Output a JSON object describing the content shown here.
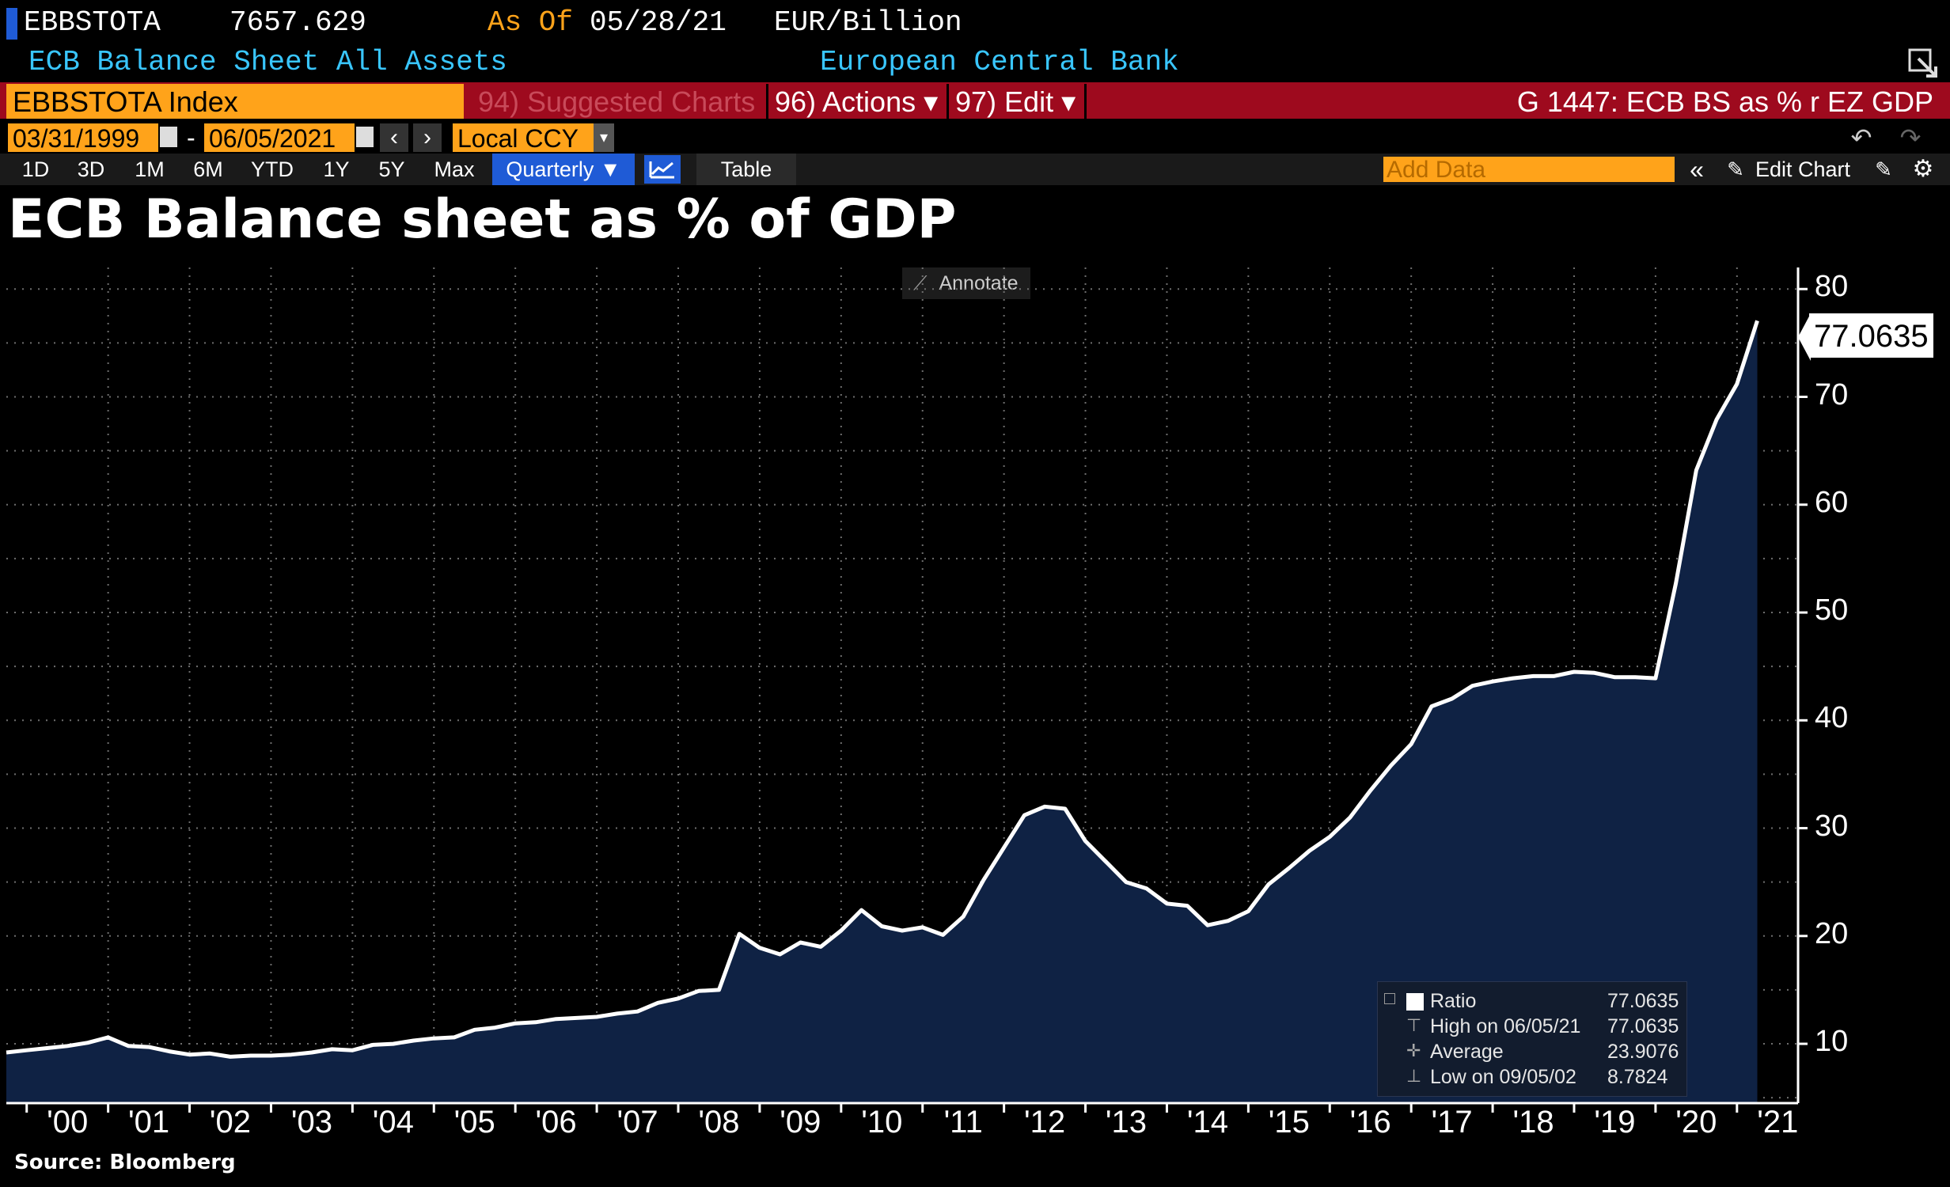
{
  "header": {
    "ticker": "EBBSTOTA",
    "last_value": "7657.629",
    "as_of_label": "As Of",
    "as_of_date": "05/28/21",
    "units": "EUR/Billion",
    "description": "ECB Balance Sheet All Assets",
    "source_name": "European Central Bank"
  },
  "toolbar": {
    "security": "EBBSTOTA Index",
    "suggested_charts": "94) Suggested Charts",
    "actions": "96) Actions ▾",
    "edit": "97) Edit ▾",
    "chart_id": "G 1447: ECB BS as % r EZ GDP",
    "start_date": "03/31/1999",
    "end_date": "06/05/2021",
    "date_separator": "-",
    "currency": "Local CCY",
    "period_buttons": [
      "1D",
      "3D",
      "1M",
      "6M",
      "YTD",
      "1Y",
      "5Y",
      "Max"
    ],
    "frequency": "Quarterly ▼",
    "table_label": "Table",
    "add_data_placeholder": "Add Data",
    "edit_chart": "Edit Chart",
    "annotate": "Annotate"
  },
  "chart_data": {
    "type": "area",
    "title": "ECB Balance sheet as % of GDP",
    "source": "Source: Bloomberg",
    "x_tick_labels": [
      "'00",
      "'01",
      "'02",
      "'03",
      "'04",
      "'05",
      "'06",
      "'07",
      "'08",
      "'09",
      "'10",
      "'11",
      "'12",
      "'13",
      "'14",
      "'15",
      "'16",
      "'17",
      "'18",
      "'19",
      "'20",
      "'21"
    ],
    "y_tick_labels": [
      "10",
      "20",
      "30",
      "40",
      "50",
      "60",
      "70",
      "80"
    ],
    "ylim": [
      4.5,
      82
    ],
    "xlim": [
      1999.75,
      2021.75
    ],
    "grid": true,
    "series": [
      {
        "name": "Ratio",
        "x": [
          1999.75,
          2000.0,
          2000.25,
          2000.5,
          2000.75,
          2001.0,
          2001.25,
          2001.5,
          2001.75,
          2002.0,
          2002.25,
          2002.5,
          2002.75,
          2003.0,
          2003.25,
          2003.5,
          2003.75,
          2004.0,
          2004.25,
          2004.5,
          2004.75,
          2005.0,
          2005.25,
          2005.5,
          2005.75,
          2006.0,
          2006.25,
          2006.5,
          2006.75,
          2007.0,
          2007.25,
          2007.5,
          2007.75,
          2008.0,
          2008.25,
          2008.5,
          2008.75,
          2009.0,
          2009.25,
          2009.5,
          2009.75,
          2010.0,
          2010.25,
          2010.5,
          2010.75,
          2011.0,
          2011.25,
          2011.5,
          2011.75,
          2012.0,
          2012.25,
          2012.5,
          2012.75,
          2013.0,
          2013.25,
          2013.5,
          2013.75,
          2014.0,
          2014.25,
          2014.5,
          2014.75,
          2015.0,
          2015.25,
          2015.5,
          2015.75,
          2016.0,
          2016.25,
          2016.5,
          2016.75,
          2017.0,
          2017.25,
          2017.5,
          2017.75,
          2018.0,
          2018.25,
          2018.5,
          2018.75,
          2019.0,
          2019.25,
          2019.5,
          2019.75,
          2020.0,
          2020.25,
          2020.5,
          2020.75,
          2021.0,
          2021.25
        ],
        "values": [
          9.2,
          9.4,
          9.6,
          9.8,
          10.1,
          10.6,
          9.8,
          9.7,
          9.3,
          9.0,
          9.1,
          8.8,
          8.9,
          8.9,
          9.0,
          9.2,
          9.5,
          9.4,
          9.9,
          10.0,
          10.3,
          10.5,
          10.6,
          11.3,
          11.5,
          11.9,
          12.0,
          12.3,
          12.4,
          12.5,
          12.8,
          13.0,
          13.8,
          14.2,
          14.9,
          15.0,
          20.2,
          18.9,
          18.3,
          19.4,
          19.0,
          20.5,
          22.4,
          20.9,
          20.5,
          20.8,
          20.1,
          21.8,
          25.2,
          28.2,
          31.2,
          32.0,
          31.8,
          28.8,
          26.9,
          25.0,
          24.4,
          23.0,
          22.8,
          21.0,
          21.4,
          22.3,
          24.8,
          26.3,
          27.9,
          29.2,
          31.0,
          33.5,
          35.8,
          37.8,
          41.3,
          42.0,
          43.2,
          43.6,
          43.9,
          44.1,
          44.1,
          44.5,
          44.4,
          44.0,
          44.0,
          43.9,
          52.7,
          63.2,
          67.9,
          71.2,
          77.0635
        ]
      }
    ],
    "last_value_label": "77.0635",
    "legend": {
      "placement": "bottom-right",
      "rows": [
        {
          "label": "Ratio",
          "value": "77.0635"
        },
        {
          "label": "High on 06/05/21",
          "value": "77.0635"
        },
        {
          "label": "Average",
          "value": "23.9076"
        },
        {
          "label": "Low on 09/05/02",
          "value": "8.7824"
        }
      ]
    },
    "colors": {
      "line": "#ffffff",
      "fill": "#0f2244",
      "grid": "#6e6e6e"
    }
  }
}
